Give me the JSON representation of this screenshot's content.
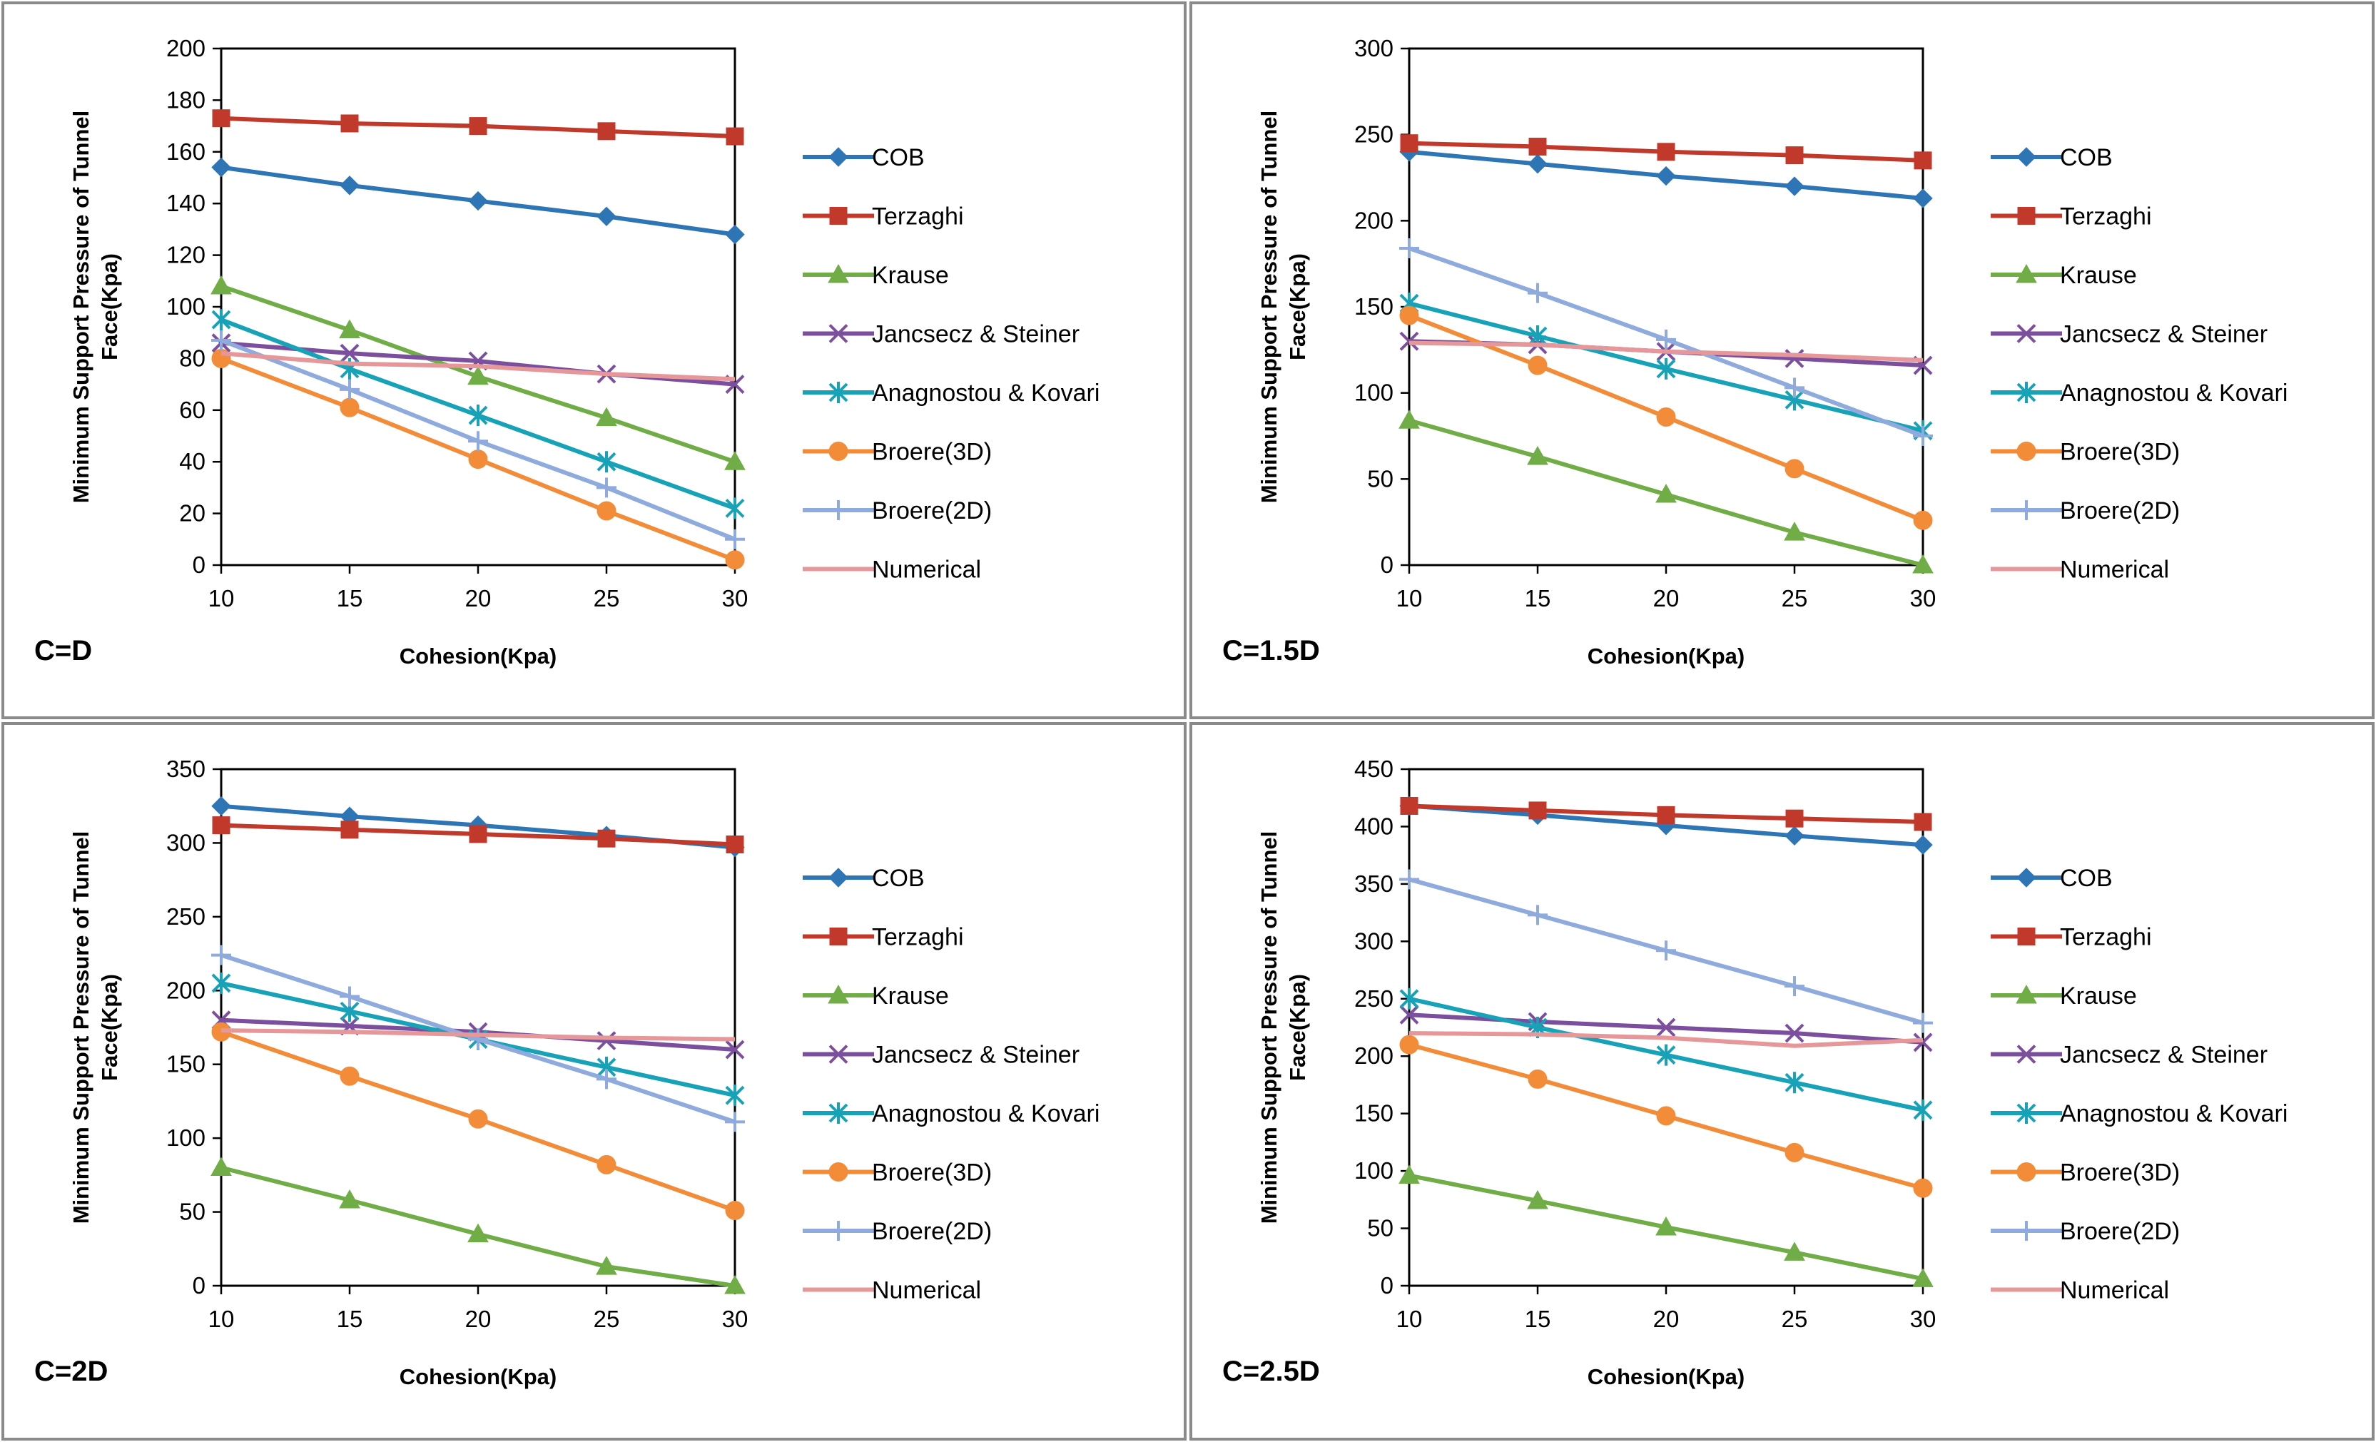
{
  "chart_data": [
    {
      "type": "line",
      "panel_label": "C=D",
      "xlabel": "Cohesion(Kpa)",
      "ylabel": "Minimum Support Pressure of Tunnel Face(Kpa)",
      "x": [
        10,
        15,
        20,
        25,
        30
      ],
      "xlim": [
        10,
        30
      ],
      "ylim": [
        0,
        200
      ],
      "yticks": [
        0,
        20,
        40,
        60,
        80,
        100,
        120,
        140,
        160,
        180,
        200
      ],
      "legend_position": "right",
      "series": [
        {
          "name": "COB",
          "values": [
            154,
            147,
            141,
            135,
            128
          ]
        },
        {
          "name": "Terzaghi",
          "values": [
            173,
            171,
            170,
            168,
            166
          ]
        },
        {
          "name": "Krause",
          "values": [
            108,
            91,
            73,
            57,
            40
          ]
        },
        {
          "name": "Jancsecz & Steiner",
          "values": [
            86,
            82,
            79,
            74,
            70
          ]
        },
        {
          "name": "Anagnostou & Kovari",
          "values": [
            95,
            76,
            58,
            40,
            22
          ]
        },
        {
          "name": "Broere(3D)",
          "values": [
            80,
            61,
            41,
            21,
            2
          ]
        },
        {
          "name": "Broere(2D)",
          "values": [
            87,
            68,
            48,
            30,
            10
          ]
        },
        {
          "name": "Numerical",
          "values": [
            82,
            78,
            77,
            74,
            72
          ]
        }
      ]
    },
    {
      "type": "line",
      "panel_label": "C=1.5D",
      "xlabel": "Cohesion(Kpa)",
      "ylabel": "Minimum Support Pressure of Tunnel Face(Kpa)",
      "x": [
        10,
        15,
        20,
        25,
        30
      ],
      "xlim": [
        10,
        30
      ],
      "ylim": [
        0,
        300
      ],
      "yticks": [
        0,
        50,
        100,
        150,
        200,
        250,
        300
      ],
      "legend_position": "right",
      "series": [
        {
          "name": "COB",
          "values": [
            240,
            233,
            226,
            220,
            213
          ]
        },
        {
          "name": "Terzaghi",
          "values": [
            245,
            243,
            240,
            238,
            235
          ]
        },
        {
          "name": "Krause",
          "values": [
            84,
            63,
            41,
            19,
            0
          ]
        },
        {
          "name": "Jancsecz & Steiner",
          "values": [
            130,
            128,
            124,
            120,
            116
          ]
        },
        {
          "name": "Anagnostou & Kovari",
          "values": [
            152,
            133,
            114,
            96,
            78
          ]
        },
        {
          "name": "Broere(3D)",
          "values": [
            145,
            116,
            86,
            56,
            26
          ]
        },
        {
          "name": "Broere(2D)",
          "values": [
            184,
            158,
            131,
            103,
            75
          ]
        },
        {
          "name": "Numerical",
          "values": [
            129,
            128,
            124,
            122,
            119
          ]
        }
      ]
    },
    {
      "type": "line",
      "panel_label": "C=2D",
      "xlabel": "Cohesion(Kpa)",
      "ylabel": "Minimum Support Pressure of Tunnel Face(Kpa)",
      "x": [
        10,
        15,
        20,
        25,
        30
      ],
      "xlim": [
        10,
        30
      ],
      "ylim": [
        0,
        350
      ],
      "yticks": [
        0,
        50,
        100,
        150,
        200,
        250,
        300,
        350
      ],
      "legend_position": "right",
      "series": [
        {
          "name": "COB",
          "values": [
            325,
            318,
            312,
            305,
            297
          ]
        },
        {
          "name": "Terzaghi",
          "values": [
            312,
            309,
            306,
            303,
            299
          ]
        },
        {
          "name": "Krause",
          "values": [
            80,
            58,
            35,
            13,
            0
          ]
        },
        {
          "name": "Jancsecz & Steiner",
          "values": [
            180,
            176,
            172,
            166,
            160
          ]
        },
        {
          "name": "Anagnostou & Kovari",
          "values": [
            205,
            186,
            167,
            148,
            129
          ]
        },
        {
          "name": "Broere(3D)",
          "values": [
            172,
            142,
            113,
            82,
            51
          ]
        },
        {
          "name": "Broere(2D)",
          "values": [
            224,
            196,
            167,
            140,
            111
          ]
        },
        {
          "name": "Numerical",
          "values": [
            173,
            172,
            170,
            168,
            167
          ]
        }
      ]
    },
    {
      "type": "line",
      "panel_label": "C=2.5D",
      "xlabel": "Cohesion(Kpa)",
      "ylabel": "Minimum Support Pressure of Tunnel Face(Kpa)",
      "x": [
        10,
        15,
        20,
        25,
        30
      ],
      "xlim": [
        10,
        30
      ],
      "ylim": [
        0,
        450
      ],
      "yticks": [
        0,
        50,
        100,
        150,
        200,
        250,
        300,
        350,
        400,
        450
      ],
      "legend_position": "right",
      "series": [
        {
          "name": "COB",
          "values": [
            418,
            410,
            401,
            392,
            384
          ]
        },
        {
          "name": "Terzaghi",
          "values": [
            418,
            414,
            410,
            407,
            404
          ]
        },
        {
          "name": "Krause",
          "values": [
            96,
            74,
            51,
            29,
            6
          ]
        },
        {
          "name": "Jancsecz & Steiner",
          "values": [
            236,
            230,
            225,
            220,
            212
          ]
        },
        {
          "name": "Anagnostou & Kovari",
          "values": [
            250,
            225,
            201,
            177,
            153
          ]
        },
        {
          "name": "Broere(3D)",
          "values": [
            210,
            180,
            148,
            116,
            85
          ]
        },
        {
          "name": "Broere(2D)",
          "values": [
            354,
            323,
            292,
            261,
            229
          ]
        },
        {
          "name": "Numerical",
          "values": [
            220,
            219,
            216,
            209,
            214
          ]
        }
      ]
    }
  ],
  "styles": {
    "COB": {
      "color": "#2E75B6",
      "marker": "diamond"
    },
    "Terzaghi": {
      "color": "#C0392B",
      "marker": "square"
    },
    "Krause": {
      "color": "#70AD47",
      "marker": "triangle"
    },
    "Jancsecz & Steiner": {
      "color": "#7B4F9D",
      "marker": "x"
    },
    "Anagnostou & Kovari": {
      "color": "#17A2B8",
      "marker": "star"
    },
    "Broere(3D)": {
      "color": "#F28C38",
      "marker": "circle"
    },
    "Broere(2D)": {
      "color": "#8FAADC",
      "marker": "plus"
    },
    "Numerical": {
      "color": "#E6979A",
      "marker": "none"
    }
  }
}
